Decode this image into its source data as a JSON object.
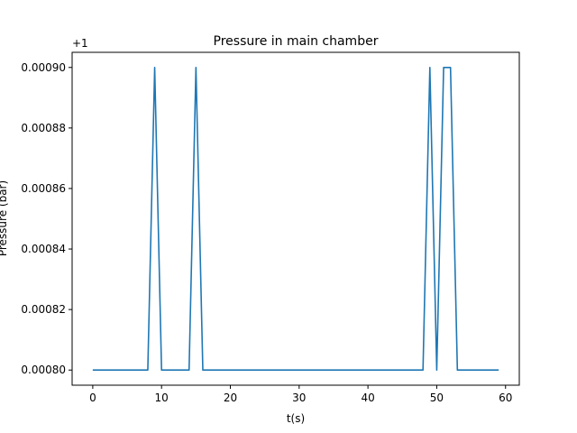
{
  "chart_data": {
    "type": "line",
    "title": "Pressure in main chamber",
    "xlabel": "t(s)",
    "ylabel": "Pressure (bar)",
    "offset_label": "+1",
    "xlim": [
      -3,
      62
    ],
    "ylim": [
      0.000795,
      0.000905
    ],
    "xticks": [
      0,
      10,
      20,
      30,
      40,
      50,
      60
    ],
    "xtick_labels": [
      "0",
      "10",
      "20",
      "30",
      "40",
      "50",
      "60"
    ],
    "yticks": [
      0.0008,
      0.00082,
      0.00084,
      0.00086,
      0.00088,
      0.0009
    ],
    "ytick_labels": [
      "0.00080",
      "0.00082",
      "0.00084",
      "0.00086",
      "0.00088",
      "0.00090"
    ],
    "grid": false,
    "series": [
      {
        "color": "#1f77b4",
        "x": [
          0,
          1,
          2,
          3,
          4,
          5,
          6,
          7,
          8,
          9,
          10,
          11,
          12,
          13,
          14,
          15,
          16,
          17,
          18,
          19,
          20,
          21,
          22,
          23,
          24,
          25,
          26,
          27,
          28,
          29,
          30,
          31,
          32,
          33,
          34,
          35,
          36,
          37,
          38,
          39,
          40,
          41,
          42,
          43,
          44,
          45,
          46,
          47,
          48,
          49,
          50,
          51,
          52,
          53,
          54,
          55,
          56,
          57,
          58,
          59
        ],
        "y": [
          0.0008,
          0.0008,
          0.0008,
          0.0008,
          0.0008,
          0.0008,
          0.0008,
          0.0008,
          0.0008,
          0.0009,
          0.0008,
          0.0008,
          0.0008,
          0.0008,
          0.0008,
          0.0009,
          0.0008,
          0.0008,
          0.0008,
          0.0008,
          0.0008,
          0.0008,
          0.0008,
          0.0008,
          0.0008,
          0.0008,
          0.0008,
          0.0008,
          0.0008,
          0.0008,
          0.0008,
          0.0008,
          0.0008,
          0.0008,
          0.0008,
          0.0008,
          0.0008,
          0.0008,
          0.0008,
          0.0008,
          0.0008,
          0.0008,
          0.0008,
          0.0008,
          0.0008,
          0.0008,
          0.0008,
          0.0008,
          0.0008,
          0.0009,
          0.0008,
          0.0009,
          0.0009,
          0.0008,
          0.0008,
          0.0008,
          0.0008,
          0.0008,
          0.0008,
          0.0008
        ]
      }
    ]
  }
}
